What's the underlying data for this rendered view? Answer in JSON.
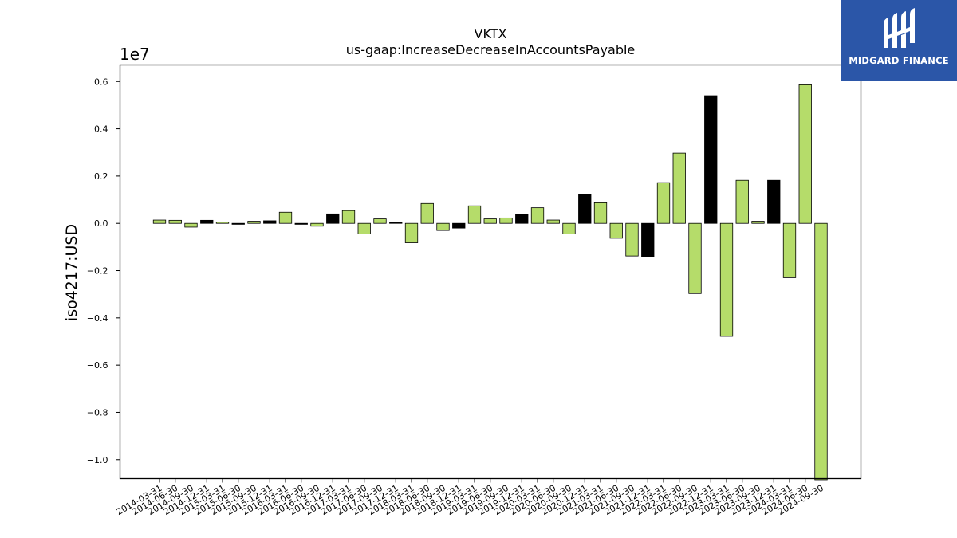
{
  "chart_data": {
    "type": "bar",
    "title": "VKTX",
    "subtitle": "us-gaap:IncreaseDecreaseInAccountsPayable",
    "ylabel": "iso4217:USD",
    "xlabel": "",
    "y_scale_label": "1e7",
    "y_multiplier": 10000000,
    "ylim": [
      -1.08,
      0.67
    ],
    "yticks": [
      -1.0,
      -0.8,
      -0.6,
      -0.4,
      -0.2,
      0.0,
      0.2,
      0.4,
      0.6
    ],
    "ytick_labels": [
      "−1.0",
      "−0.8",
      "−0.6",
      "−0.4",
      "−0.2",
      "0.0",
      "0.2",
      "0.4",
      "0.6"
    ],
    "grid": false,
    "categories": [
      "2014-03-31",
      "2014-06-30",
      "2014-09-30",
      "2014-12-31",
      "2015-03-31",
      "2015-06-30",
      "2015-09-30",
      "2015-12-31",
      "2016-03-31",
      "2016-06-30",
      "2016-09-30",
      "2016-12-31",
      "2017-03-31",
      "2017-06-30",
      "2017-09-30",
      "2017-12-31",
      "2018-03-31",
      "2018-06-30",
      "2018-09-30",
      "2018-12-31",
      "2019-03-31",
      "2019-06-30",
      "2019-09-30",
      "2019-12-31",
      "2020-03-31",
      "2020-06-30",
      "2020-09-30",
      "2020-12-31",
      "2021-03-31",
      "2021-06-30",
      "2021-09-30",
      "2021-12-31",
      "2022-03-31",
      "2022-06-30",
      "2022-09-30",
      "2022-12-31",
      "2023-03-31",
      "2023-06-30",
      "2023-09-30",
      "2023-12-31",
      "2024-03-31",
      "2024-06-30",
      "2024-09-30"
    ],
    "values": [
      0.014,
      0.013,
      -0.016,
      0.013,
      0.006,
      -0.004,
      0.009,
      0.011,
      0.047,
      -0.004,
      -0.012,
      0.04,
      0.054,
      -0.045,
      0.019,
      0.004,
      -0.082,
      0.084,
      -0.03,
      -0.02,
      0.074,
      0.019,
      0.023,
      0.038,
      0.066,
      0.014,
      -0.045,
      0.124,
      0.087,
      -0.063,
      -0.138,
      -0.142,
      0.172,
      0.297,
      -0.297,
      0.54,
      -0.478,
      0.182,
      0.009,
      0.182,
      -0.23,
      0.586,
      -1.085
    ],
    "colors": {
      "bar_green": "#b5dc6a",
      "bar_black": "#000000"
    },
    "bar_colors": [
      "green",
      "green",
      "green",
      "black",
      "green",
      "black",
      "green",
      "black",
      "green",
      "black",
      "green",
      "black",
      "green",
      "green",
      "green",
      "black",
      "green",
      "green",
      "green",
      "black",
      "green",
      "green",
      "green",
      "black",
      "green",
      "green",
      "green",
      "black",
      "green",
      "green",
      "green",
      "black",
      "green",
      "green",
      "green",
      "black",
      "green",
      "green",
      "green",
      "black",
      "green",
      "green",
      "green"
    ]
  },
  "logo": {
    "text": "MIDGARD FINANCE",
    "background": "#2b56a8"
  }
}
